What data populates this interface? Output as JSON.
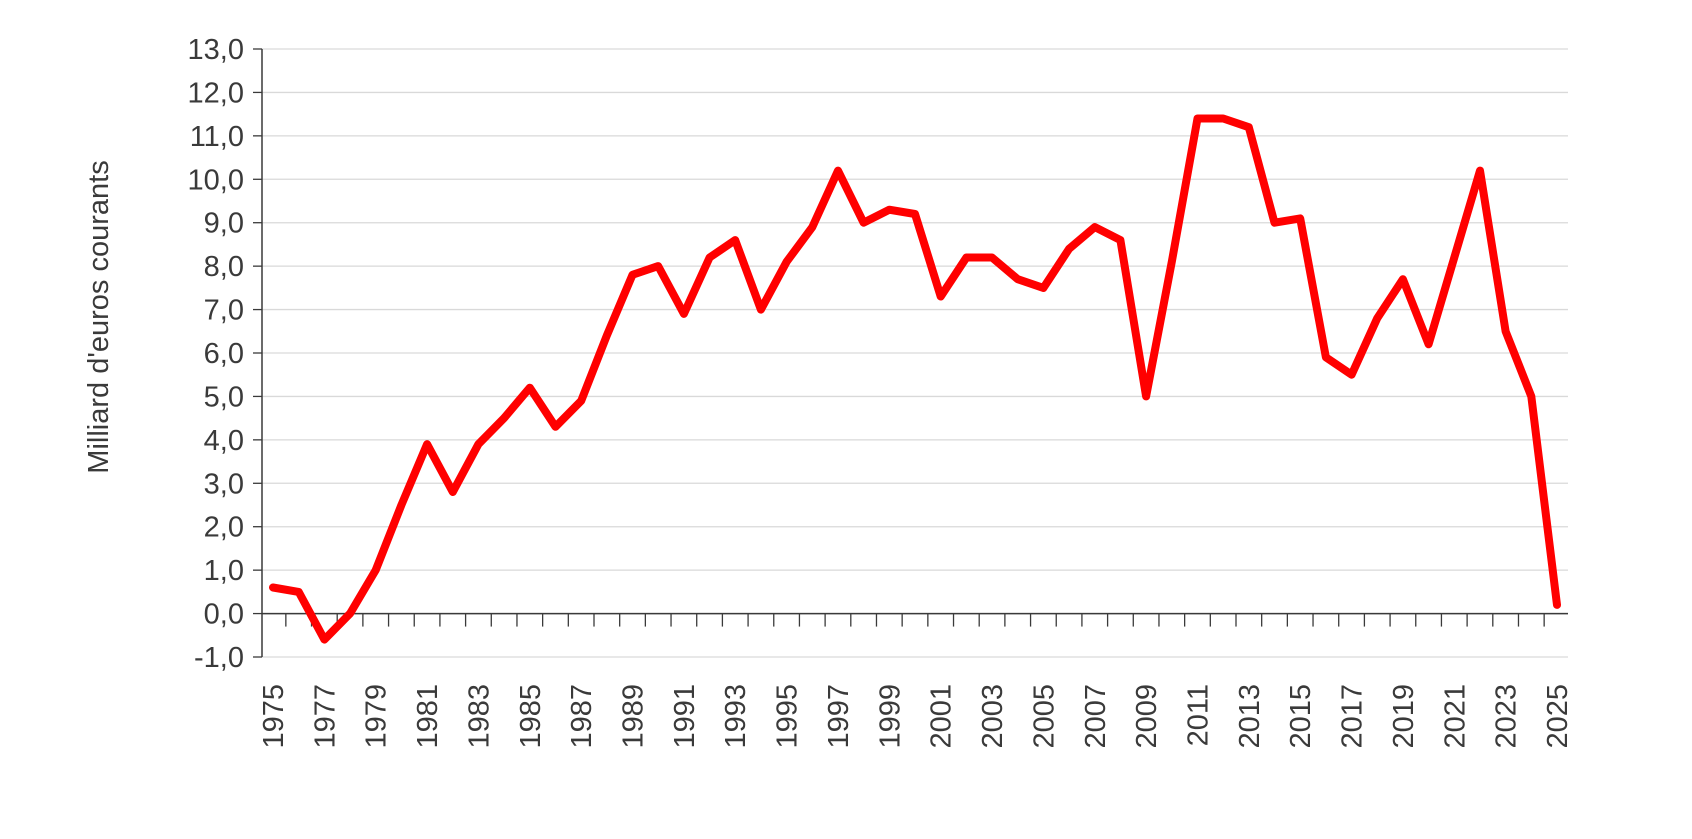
{
  "colors": {
    "series": "#ff0000",
    "grid": "#d9d9d9",
    "axis": "#3a3a3a",
    "text": "#3a3a3a",
    "background": "#ffffff"
  },
  "chart_data": {
    "type": "line",
    "title": "",
    "xlabel": "",
    "ylabel": "Milliard d'euros courants",
    "ylim": [
      -1,
      13
    ],
    "y_ticks": [
      "13,0",
      "12,0",
      "11,0",
      "10,0",
      "9,0",
      "8,0",
      "7,0",
      "6,0",
      "5,0",
      "4,0",
      "3,0",
      "2,0",
      "1,0",
      "0,0",
      "-1,0"
    ],
    "x_tick_labels": [
      "1975",
      "1977",
      "1979",
      "1981",
      "1983",
      "1985",
      "1987",
      "1989",
      "1991",
      "1993",
      "1995",
      "1997",
      "1999",
      "2001",
      "2003",
      "2005",
      "2007",
      "2009",
      "2011",
      "2013",
      "2015",
      "2017",
      "2019",
      "2021",
      "2023",
      "2025"
    ],
    "grid": true,
    "legend": "none",
    "x": [
      1975,
      1976,
      1977,
      1978,
      1979,
      1980,
      1981,
      1982,
      1983,
      1984,
      1985,
      1986,
      1987,
      1988,
      1989,
      1990,
      1991,
      1992,
      1993,
      1994,
      1995,
      1996,
      1997,
      1998,
      1999,
      2000,
      2001,
      2002,
      2003,
      2004,
      2005,
      2006,
      2007,
      2008,
      2009,
      2010,
      2011,
      2012,
      2013,
      2014,
      2015,
      2016,
      2017,
      2018,
      2019,
      2020,
      2021,
      2022,
      2023,
      2024,
      2025
    ],
    "series": [
      {
        "values": [
          0.6,
          0.5,
          -0.6,
          0.0,
          1.0,
          2.5,
          3.9,
          2.8,
          3.9,
          4.5,
          5.2,
          4.3,
          4.9,
          6.4,
          7.8,
          8.0,
          6.9,
          8.2,
          8.6,
          7.0,
          8.1,
          8.9,
          10.2,
          9.0,
          9.3,
          9.2,
          7.3,
          8.2,
          8.2,
          7.7,
          7.5,
          8.4,
          8.9,
          8.6,
          5.0,
          8.1,
          11.4,
          11.4,
          11.2,
          9.0,
          9.1,
          5.9,
          5.5,
          6.8,
          7.7,
          6.2,
          8.2,
          10.2,
          6.5,
          5.0,
          0.2
        ]
      }
    ]
  }
}
